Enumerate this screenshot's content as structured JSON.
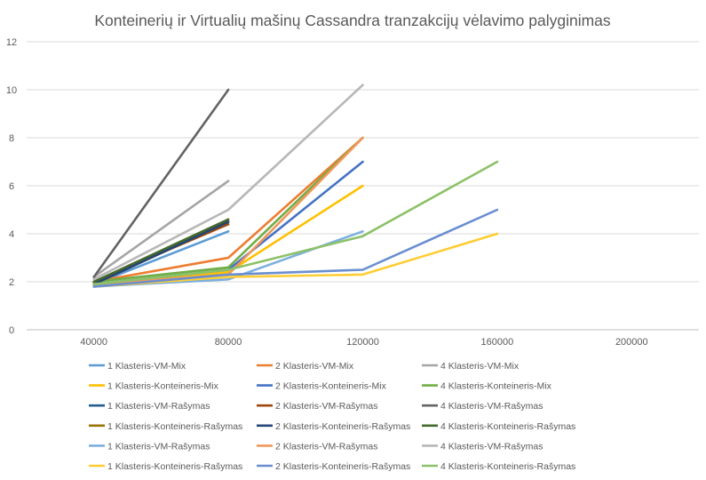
{
  "chart_data": {
    "type": "line",
    "title": "Konteinerių ir Virtualių mašinų Cassandra tranzakcijų vėlavimo palyginimas",
    "xlabel": "",
    "ylabel": "",
    "categories": [
      "40000",
      "80000",
      "120000",
      "160000",
      "200000"
    ],
    "ylim": [
      0,
      12
    ],
    "yticks": [
      0,
      2,
      4,
      6,
      8,
      10,
      12
    ],
    "grid": true,
    "legend_position": "bottom",
    "series": [
      {
        "name": "1 Klasteris-VM-Mix",
        "color": "#5B9BD5",
        "values": [
          1.9,
          4.1,
          null,
          null,
          null
        ]
      },
      {
        "name": "2 Klasteris-VM-Mix",
        "color": "#ED7D31",
        "values": [
          2.0,
          3.0,
          8.0,
          null,
          null
        ]
      },
      {
        "name": "4 Klasteris-VM-Mix",
        "color": "#A5A5A5",
        "values": [
          2.2,
          6.2,
          null,
          null,
          null
        ]
      },
      {
        "name": "1 Klasteris-Konteineris-Mix",
        "color": "#FFC000",
        "values": [
          1.9,
          2.4,
          6.0,
          null,
          null
        ]
      },
      {
        "name": "2 Klasteris-Konteineris-Mix",
        "color": "#4472C4",
        "values": [
          1.9,
          2.5,
          7.0,
          null,
          null
        ]
      },
      {
        "name": "4 Klasteris-Konteineris-Mix",
        "color": "#70AD47",
        "values": [
          2.0,
          2.6,
          8.0,
          null,
          null
        ]
      },
      {
        "name": "1 Klasteris-VM-Rašymas",
        "color": "#255E91",
        "values": [
          1.9,
          4.5,
          null,
          null,
          null
        ]
      },
      {
        "name": "2 Klasteris-VM-Rašymas",
        "color": "#9E480E",
        "values": [
          2.0,
          4.4,
          null,
          null,
          null
        ]
      },
      {
        "name": "4 Klasteris-VM-Rašymas",
        "color": "#636363",
        "values": [
          2.2,
          10.0,
          null,
          null,
          null
        ]
      },
      {
        "name": "1 Klasteris-Konteineris-Rašymas",
        "color": "#997300",
        "values": [
          1.9,
          4.5,
          null,
          null,
          null
        ]
      },
      {
        "name": "2 Klasteris-Konteineris-Rašymas",
        "color": "#264478",
        "values": [
          1.9,
          4.5,
          null,
          null,
          null
        ]
      },
      {
        "name": "4 Klasteris-Konteineris-Rašymas",
        "color": "#43682B",
        "values": [
          2.0,
          4.6,
          null,
          null,
          null
        ]
      },
      {
        "name": "1 Klasteris-VM-Rašymas",
        "color": "#7CAFDD",
        "values": [
          1.8,
          2.1,
          4.1,
          null,
          null
        ]
      },
      {
        "name": "2 Klasteris-VM-Rašymas",
        "color": "#F1975A",
        "values": [
          1.9,
          2.3,
          8.0,
          null,
          null
        ]
      },
      {
        "name": "4 Klasteris-VM-Rašymas",
        "color": "#B7B7B7",
        "values": [
          2.1,
          5.0,
          10.2,
          null,
          null
        ]
      },
      {
        "name": "1 Klasteris-Konteineris-Rašymas",
        "color": "#FFCD33",
        "values": [
          1.8,
          2.2,
          2.3,
          4.0,
          null
        ]
      },
      {
        "name": "2 Klasteris-Konteineris-Rašymas",
        "color": "#698ED0",
        "values": [
          1.8,
          2.3,
          2.5,
          5.0,
          null
        ]
      },
      {
        "name": "4 Klasteris-Konteineris-Rašymas",
        "color": "#8CC168",
        "values": [
          1.9,
          2.5,
          3.9,
          7.0,
          null
        ]
      }
    ]
  }
}
